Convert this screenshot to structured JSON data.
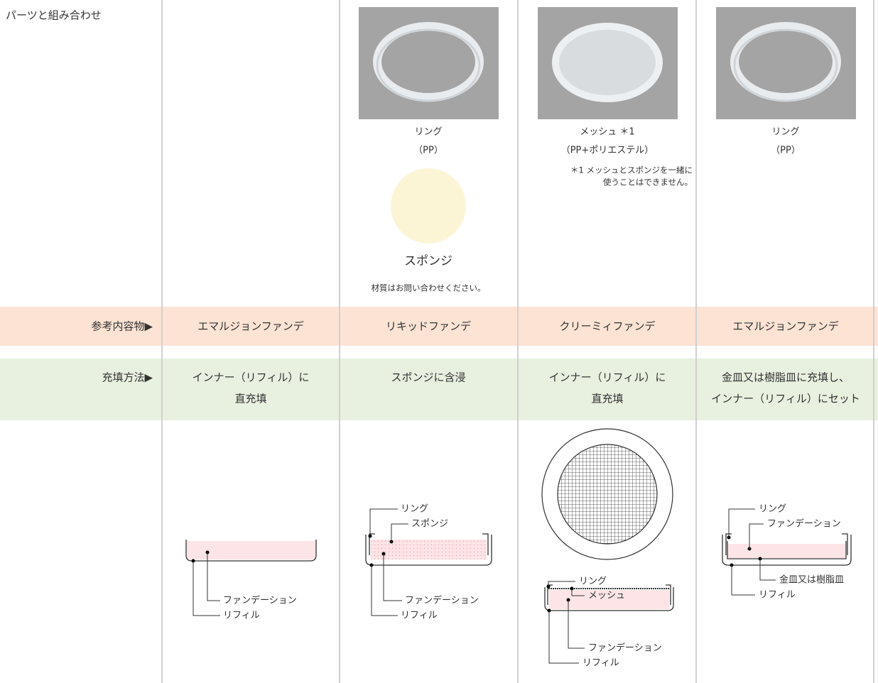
{
  "parts": {
    "label": "パーツと組み合わせ",
    "cells": [
      null,
      {
        "name": "リング",
        "material": "（PP）",
        "sponge": "スポンジ",
        "sponge_note": "材質はお問い合わせください。"
      },
      {
        "name": "メッシュ ＊1",
        "material": "（PP+ポリエステル）",
        "note": [
          "＊1 メッシュとスポンジを一緒に",
          "使うことはできません。"
        ]
      },
      {
        "name": "リング",
        "material": "（PP）"
      }
    ]
  },
  "contents": {
    "label": "参考内容物▶",
    "cells": [
      "エマルジョンファンデ",
      "リキッドファンデ",
      "クリーミィファンデ",
      "エマルジョンファンデ"
    ]
  },
  "filling": {
    "label": "充填方法▶",
    "cells": [
      [
        "インナー（リフィル）に",
        "直充填"
      ],
      [
        "スポンジに含浸"
      ],
      [
        "インナー（リフィル）に",
        "直充填"
      ],
      [
        "金皿又は樹脂皿に充填し、",
        "インナー（リフィル）にセット"
      ]
    ]
  },
  "diagrams": {
    "cells": [
      [
        "ファンデーション",
        "リフィル"
      ],
      [
        "リング",
        "スポンジ",
        "ファンデーション",
        "リフィル"
      ],
      [
        "リング",
        "メッシュ",
        "ファンデーション",
        "リフィル"
      ],
      [
        "リング",
        "ファンデーション",
        "金皿又は樹脂皿",
        "リフィル"
      ]
    ]
  }
}
